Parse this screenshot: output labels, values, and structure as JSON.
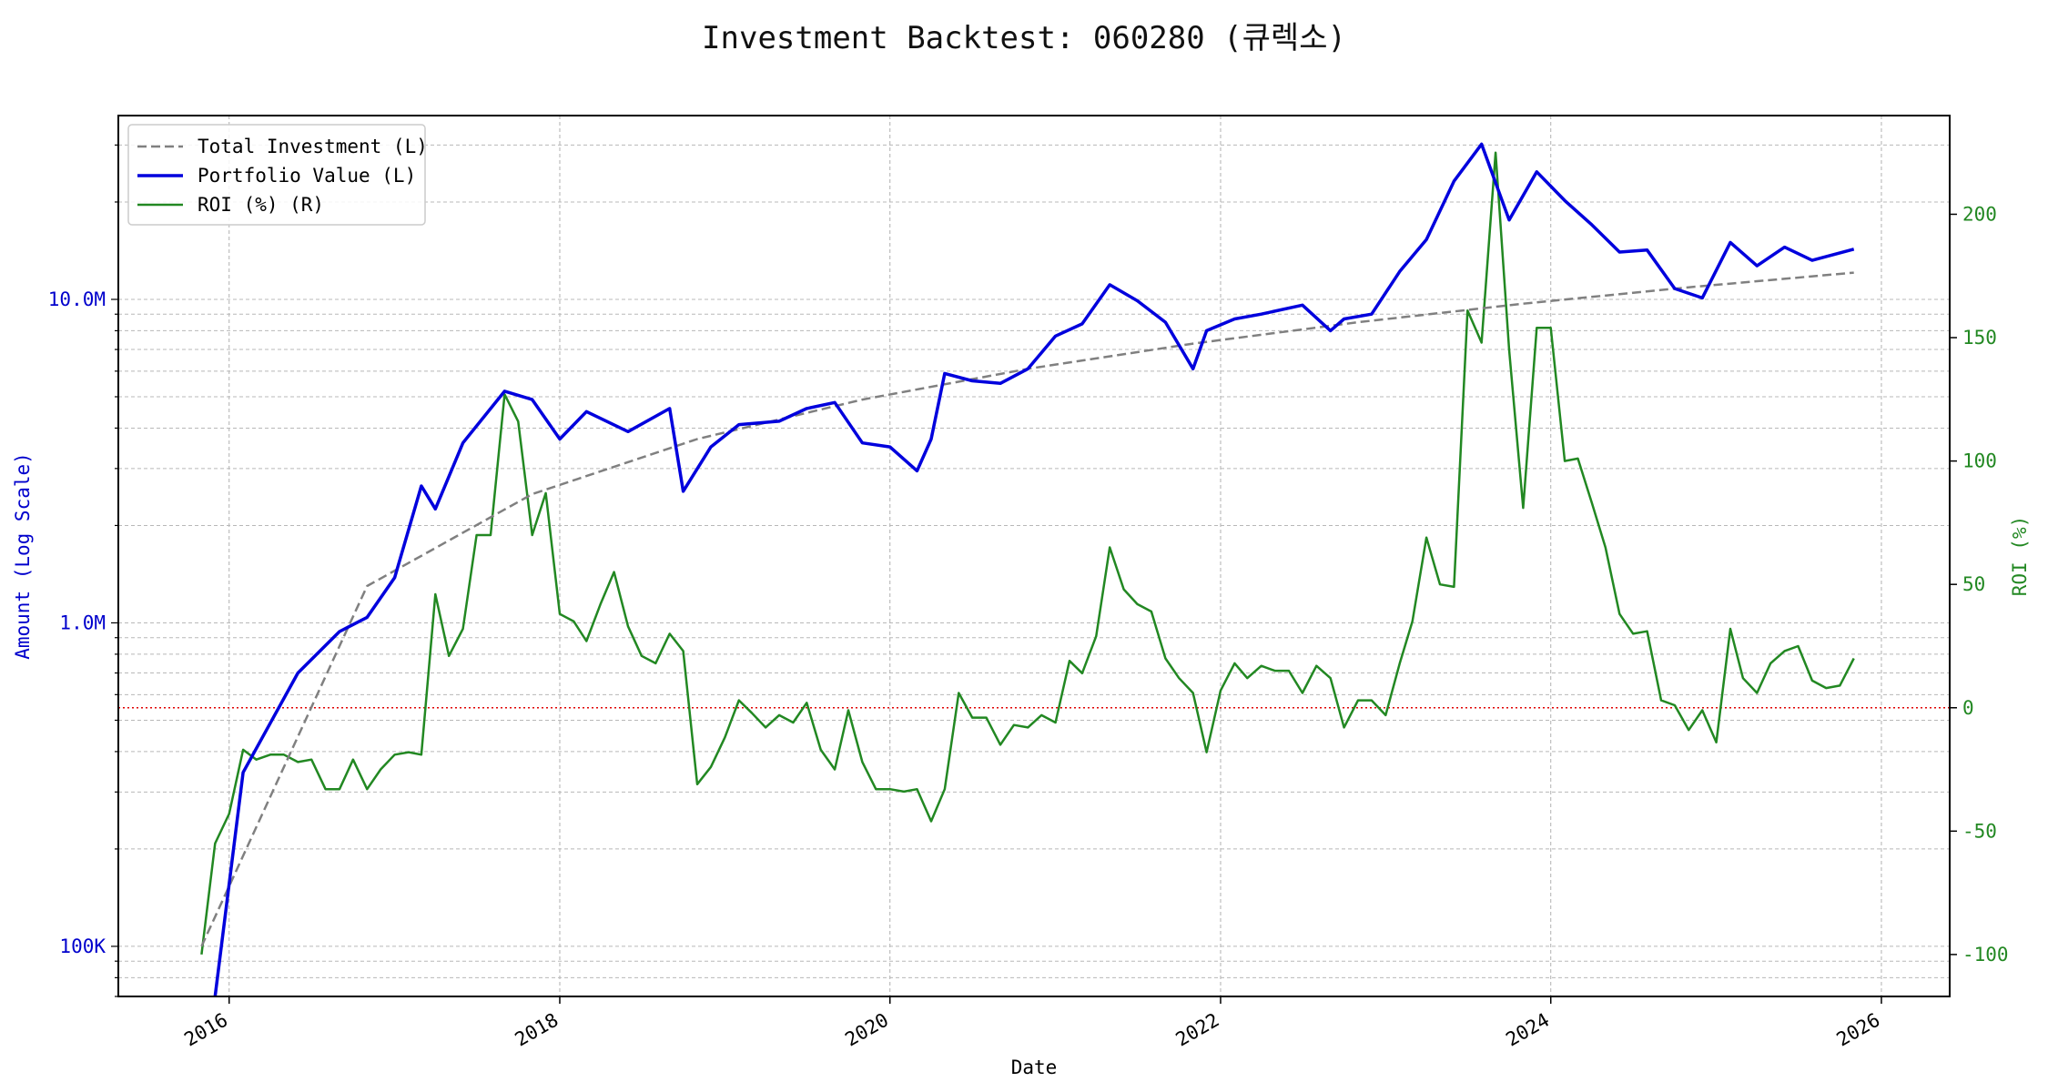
{
  "chart_data": {
    "type": "line",
    "title": "Investment Backtest: 060280 (큐렉소)",
    "xlabel": "Date",
    "ylabel_left": "Amount (Log Scale)",
    "ylabel_right": "ROI (%)",
    "y_left_scale": "log",
    "y_left_lim": [
      70000,
      37000000
    ],
    "y_right_lim": [
      -117,
      240
    ],
    "x_lim": [
      "2015-05-01",
      "2026-06-01"
    ],
    "x_ticks": [
      "2016",
      "2018",
      "2020",
      "2022",
      "2024",
      "2026"
    ],
    "y_left_ticks": [
      {
        "value": 100000,
        "label": "100K"
      },
      {
        "value": 1000000,
        "label": "1.0M"
      },
      {
        "value": 10000000,
        "label": "10.0M"
      }
    ],
    "y_right_ticks": [
      -100,
      -50,
      0,
      50,
      100,
      150,
      200
    ],
    "grid": true,
    "legend_position": "upper-left",
    "reference_line": {
      "value": 0,
      "axis": "right",
      "color": "#e00000",
      "style": "dotted"
    },
    "colors": {
      "left_axis": "#0000cc",
      "right_axis": "#228822"
    },
    "series": [
      {
        "name": "Total Investment (L)",
        "axis": "left",
        "color": "#808080",
        "style": "dashed",
        "x": [
          "2015-11",
          "2016-11",
          "2017-11",
          "2018-11",
          "2019-11",
          "2020-11",
          "2021-11",
          "2022-11",
          "2023-11",
          "2024-11",
          "2025-11"
        ],
        "values": [
          100000,
          1300000,
          2500000,
          3700000,
          4900000,
          6100000,
          7300000,
          8500000,
          9700000,
          10900000,
          12100000
        ]
      },
      {
        "name": "Portfolio Value (L)",
        "axis": "left",
        "color": "#0000dd",
        "style": "solid",
        "x": [
          "2015-12",
          "2016-02",
          "2016-06",
          "2016-09",
          "2016-11",
          "2017-01",
          "2017-03",
          "2017-04",
          "2017-06",
          "2017-09",
          "2017-11",
          "2018-01",
          "2018-03",
          "2018-06",
          "2018-09",
          "2018-10",
          "2018-12",
          "2019-02",
          "2019-05",
          "2019-07",
          "2019-09",
          "2019-11",
          "2020-01",
          "2020-03",
          "2020-04",
          "2020-05",
          "2020-07",
          "2020-09",
          "2020-11",
          "2021-01",
          "2021-03",
          "2021-05",
          "2021-07",
          "2021-09",
          "2021-11",
          "2021-12",
          "2022-02",
          "2022-04",
          "2022-07",
          "2022-09",
          "2022-10",
          "2022-12",
          "2023-02",
          "2023-04",
          "2023-06",
          "2023-08",
          "2023-10",
          "2023-12",
          "2024-02",
          "2024-04",
          "2024-06",
          "2024-08",
          "2024-10",
          "2024-12",
          "2025-02",
          "2025-04",
          "2025-06",
          "2025-08",
          "2025-11"
        ],
        "values": [
          70000,
          345000,
          700000,
          940000,
          1040000,
          1380000,
          2650000,
          2250000,
          3600000,
          5200000,
          4900000,
          3700000,
          4500000,
          3900000,
          4600000,
          2550000,
          3500000,
          4100000,
          4200000,
          4600000,
          4800000,
          3600000,
          3500000,
          2950000,
          3700000,
          5900000,
          5600000,
          5500000,
          6100000,
          7700000,
          8400000,
          11100000,
          9900000,
          8500000,
          6100000,
          8000000,
          8700000,
          9000000,
          9600000,
          8000000,
          8700000,
          9000000,
          12200000,
          15300000,
          23200000,
          30200000,
          17600000,
          24800000,
          20200000,
          17000000,
          14000000,
          14200000,
          10800000,
          10100000,
          15000000,
          12700000,
          14500000,
          13200000,
          14300000
        ]
      },
      {
        "name": "ROI (%) (R)",
        "axis": "right",
        "color": "#228822",
        "style": "solid",
        "x": [
          "2015-11",
          "2015-12",
          "2016-01",
          "2016-02",
          "2016-03",
          "2016-04",
          "2016-05",
          "2016-06",
          "2016-07",
          "2016-08",
          "2016-09",
          "2016-10",
          "2016-11",
          "2016-12",
          "2017-01",
          "2017-02",
          "2017-03",
          "2017-04",
          "2017-05",
          "2017-06",
          "2017-07",
          "2017-08",
          "2017-09",
          "2017-10",
          "2017-11",
          "2017-12",
          "2018-01",
          "2018-02",
          "2018-03",
          "2018-04",
          "2018-05",
          "2018-06",
          "2018-07",
          "2018-08",
          "2018-09",
          "2018-10",
          "2018-11",
          "2018-12",
          "2019-01",
          "2019-02",
          "2019-03",
          "2019-04",
          "2019-05",
          "2019-06",
          "2019-07",
          "2019-08",
          "2019-09",
          "2019-10",
          "2019-11",
          "2019-12",
          "2020-01",
          "2020-02",
          "2020-03",
          "2020-04",
          "2020-05",
          "2020-06",
          "2020-07",
          "2020-08",
          "2020-09",
          "2020-10",
          "2020-11",
          "2020-12",
          "2021-01",
          "2021-02",
          "2021-03",
          "2021-04",
          "2021-05",
          "2021-06",
          "2021-07",
          "2021-08",
          "2021-09",
          "2021-10",
          "2021-11",
          "2021-12",
          "2022-01",
          "2022-02",
          "2022-03",
          "2022-04",
          "2022-05",
          "2022-06",
          "2022-07",
          "2022-08",
          "2022-09",
          "2022-10",
          "2022-11",
          "2022-12",
          "2023-01",
          "2023-02",
          "2023-03",
          "2023-04",
          "2023-05",
          "2023-06",
          "2023-07",
          "2023-08",
          "2023-09",
          "2023-10",
          "2023-11",
          "2023-12",
          "2024-01",
          "2024-02",
          "2024-03",
          "2024-04",
          "2024-05",
          "2024-06",
          "2024-07",
          "2024-08",
          "2024-09",
          "2024-10",
          "2024-11",
          "2024-12",
          "2025-01",
          "2025-02",
          "2025-03",
          "2025-04",
          "2025-05",
          "2025-06",
          "2025-07",
          "2025-08",
          "2025-09",
          "2025-10",
          "2025-11"
        ],
        "values": [
          -100,
          -55,
          -43,
          -17,
          -21,
          -19,
          -19,
          -22,
          -21,
          -33,
          -33,
          -21,
          -33,
          -25,
          -19,
          -18,
          -19,
          46,
          21,
          32,
          70,
          70,
          127,
          116,
          70,
          87,
          38,
          35,
          27,
          42,
          55,
          33,
          21,
          18,
          30,
          23,
          -31,
          -24,
          -12,
          3,
          -2,
          -8,
          -3,
          -6,
          2,
          -17,
          -25,
          -1,
          -22,
          -33,
          -33,
          -34,
          -33,
          -46,
          -33,
          6,
          -4,
          -4,
          -15,
          -7,
          -8,
          -3,
          -6,
          19,
          14,
          29,
          65,
          48,
          42,
          39,
          20,
          12,
          6,
          -18,
          7,
          18,
          12,
          17,
          15,
          15,
          6,
          17,
          12,
          -8,
          3,
          3,
          -3,
          18,
          35,
          69,
          50,
          49,
          161,
          148,
          225,
          145,
          81,
          154,
          154,
          100,
          101,
          83,
          65,
          38,
          30,
          31,
          3,
          1,
          -9,
          -1,
          -14,
          32,
          12,
          6,
          18,
          23,
          25,
          11,
          8,
          9,
          20
        ]
      }
    ]
  }
}
